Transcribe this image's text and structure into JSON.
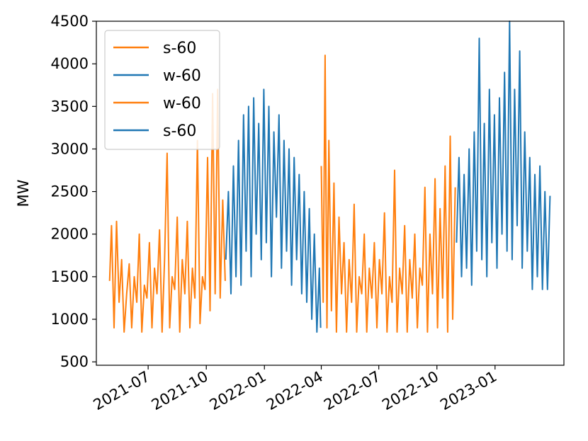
{
  "chart_data": {
    "type": "line",
    "title": "",
    "xlabel": "",
    "ylabel": "MW",
    "ylim": [
      460,
      4500
    ],
    "xlim": [
      "2021-04-10",
      "2023-04-20"
    ],
    "grid": false,
    "legend_placement": "top-left",
    "yticks": [
      500,
      1000,
      1500,
      2000,
      2500,
      3000,
      3500,
      4000,
      4500
    ],
    "xticks": [
      "2021-07",
      "2021-10",
      "2022-01",
      "2022-04",
      "2022-07",
      "2022-10",
      "2023-01"
    ],
    "colors": {
      "orange": "#ff7f0e",
      "blue": "#1f77b4"
    },
    "legend": [
      {
        "name": "s-60",
        "color": "#ff7f0e"
      },
      {
        "name": "w-60",
        "color": "#1f77b4"
      },
      {
        "name": "w-60",
        "color": "#ff7f0e"
      },
      {
        "name": "s-60",
        "color": "#1f77b4"
      }
    ],
    "series": [
      {
        "name": "s-60",
        "color": "#ff7f0e",
        "x": [
          "2021-05-01",
          "2021-05-04",
          "2021-05-08",
          "2021-05-12",
          "2021-05-16",
          "2021-05-20",
          "2021-05-24",
          "2021-05-28",
          "2021-06-01",
          "2021-06-05",
          "2021-06-09",
          "2021-06-13",
          "2021-06-17",
          "2021-06-21",
          "2021-06-25",
          "2021-06-29",
          "2021-07-03",
          "2021-07-07",
          "2021-07-11",
          "2021-07-15",
          "2021-07-19",
          "2021-07-23",
          "2021-07-27",
          "2021-07-31",
          "2021-08-04",
          "2021-08-08",
          "2021-08-12",
          "2021-08-16",
          "2021-08-20",
          "2021-08-24",
          "2021-08-28",
          "2021-09-01",
          "2021-09-05",
          "2021-09-09",
          "2021-09-13",
          "2021-09-17",
          "2021-09-21",
          "2021-09-25",
          "2021-09-29",
          "2021-10-03",
          "2021-10-07",
          "2021-10-11",
          "2021-10-15",
          "2021-10-19",
          "2021-10-23",
          "2021-10-27",
          "2021-10-31"
        ],
        "y": [
          1450,
          2100,
          900,
          2150,
          1200,
          1700,
          850,
          1300,
          1650,
          900,
          1500,
          1200,
          2000,
          850,
          1400,
          1250,
          1900,
          900,
          1600,
          1300,
          2050,
          850,
          1700,
          2950,
          900,
          1500,
          1350,
          2200,
          850,
          1700,
          1300,
          2150,
          900,
          1600,
          1250,
          3100,
          950,
          1500,
          1350,
          2900,
          1100,
          3650,
          1300,
          3700,
          1250,
          2400,
          1450
        ]
      },
      {
        "name": "w-60",
        "color": "#1f77b4",
        "x": [
          "2021-11-01",
          "2021-11-05",
          "2021-11-09",
          "2021-11-13",
          "2021-11-17",
          "2021-11-21",
          "2021-11-25",
          "2021-11-29",
          "2021-12-03",
          "2021-12-07",
          "2021-12-11",
          "2021-12-15",
          "2021-12-19",
          "2021-12-23",
          "2021-12-27",
          "2021-12-31",
          "2022-01-04",
          "2022-01-08",
          "2022-01-12",
          "2022-01-16",
          "2022-01-20",
          "2022-01-24",
          "2022-01-28",
          "2022-02-01",
          "2022-02-05",
          "2022-02-09",
          "2022-02-13",
          "2022-02-17",
          "2022-02-21",
          "2022-02-25",
          "2022-03-01",
          "2022-03-05",
          "2022-03-09",
          "2022-03-13",
          "2022-03-17",
          "2022-03-21",
          "2022-03-25",
          "2022-03-29",
          "2022-03-31"
        ],
        "y": [
          1700,
          2500,
          1300,
          2800,
          1500,
          3100,
          1400,
          3400,
          1800,
          3500,
          1500,
          3600,
          2000,
          3300,
          1700,
          3700,
          1900,
          3500,
          1500,
          3200,
          2200,
          3400,
          1600,
          3100,
          1800,
          3000,
          1400,
          2900,
          1700,
          2700,
          1300,
          2500,
          1200,
          2300,
          1000,
          2000,
          850,
          1600,
          900
        ]
      },
      {
        "name": "w-60",
        "color": "#ff7f0e",
        "x": [
          "2022-04-01",
          "2022-04-04",
          "2022-04-07",
          "2022-04-10",
          "2022-04-13",
          "2022-04-17",
          "2022-04-21",
          "2022-04-25",
          "2022-04-29",
          "2022-05-03",
          "2022-05-07",
          "2022-05-11",
          "2022-05-15",
          "2022-05-19",
          "2022-05-23",
          "2022-05-27",
          "2022-05-31",
          "2022-06-04",
          "2022-06-08",
          "2022-06-12",
          "2022-06-16",
          "2022-06-20",
          "2022-06-24",
          "2022-06-28",
          "2022-07-02",
          "2022-07-06",
          "2022-07-10",
          "2022-07-14",
          "2022-07-18",
          "2022-07-22",
          "2022-07-26",
          "2022-07-30",
          "2022-08-03",
          "2022-08-07",
          "2022-08-11",
          "2022-08-15",
          "2022-08-19",
          "2022-08-23",
          "2022-08-27",
          "2022-08-31",
          "2022-09-04",
          "2022-09-08",
          "2022-09-12",
          "2022-09-16",
          "2022-09-20",
          "2022-09-24",
          "2022-09-28",
          "2022-10-02",
          "2022-10-06",
          "2022-10-10",
          "2022-10-14",
          "2022-10-18",
          "2022-10-22",
          "2022-10-26",
          "2022-10-30"
        ],
        "y": [
          2800,
          1200,
          4100,
          900,
          3100,
          1100,
          2600,
          850,
          2200,
          1300,
          1900,
          850,
          1700,
          1200,
          2350,
          850,
          1500,
          1300,
          2000,
          850,
          1600,
          1250,
          1900,
          900,
          1700,
          1300,
          2250,
          850,
          1500,
          1200,
          2750,
          850,
          1600,
          1300,
          2100,
          850,
          1700,
          1250,
          2000,
          900,
          1600,
          1400,
          2550,
          850,
          2000,
          1300,
          2650,
          900,
          2300,
          1250,
          2800,
          850,
          3150,
          1000,
          2550
        ]
      },
      {
        "name": "s-60",
        "color": "#1f77b4",
        "x": [
          "2022-11-01",
          "2022-11-05",
          "2022-11-09",
          "2022-11-13",
          "2022-11-17",
          "2022-11-21",
          "2022-11-25",
          "2022-11-29",
          "2022-12-03",
          "2022-12-07",
          "2022-12-11",
          "2022-12-15",
          "2022-12-19",
          "2022-12-23",
          "2022-12-27",
          "2022-12-31",
          "2023-01-04",
          "2023-01-08",
          "2023-01-12",
          "2023-01-16",
          "2023-01-20",
          "2023-01-24",
          "2023-01-28",
          "2023-02-01",
          "2023-02-05",
          "2023-02-09",
          "2023-02-13",
          "2023-02-17",
          "2023-02-21",
          "2023-02-25",
          "2023-03-01",
          "2023-03-05",
          "2023-03-09",
          "2023-03-13",
          "2023-03-17",
          "2023-03-21",
          "2023-03-25",
          "2023-03-29"
        ],
        "y": [
          1900,
          2900,
          1500,
          2700,
          1600,
          3000,
          1400,
          3200,
          1800,
          4300,
          1700,
          3300,
          1500,
          3700,
          1900,
          3400,
          1600,
          3600,
          2000,
          3900,
          1800,
          4500,
          1700,
          3700,
          2100,
          4150,
          1600,
          3200,
          1800,
          2900,
          1350,
          2700,
          1500,
          2800,
          1350,
          2500,
          1350,
          2450
        ]
      }
    ]
  }
}
